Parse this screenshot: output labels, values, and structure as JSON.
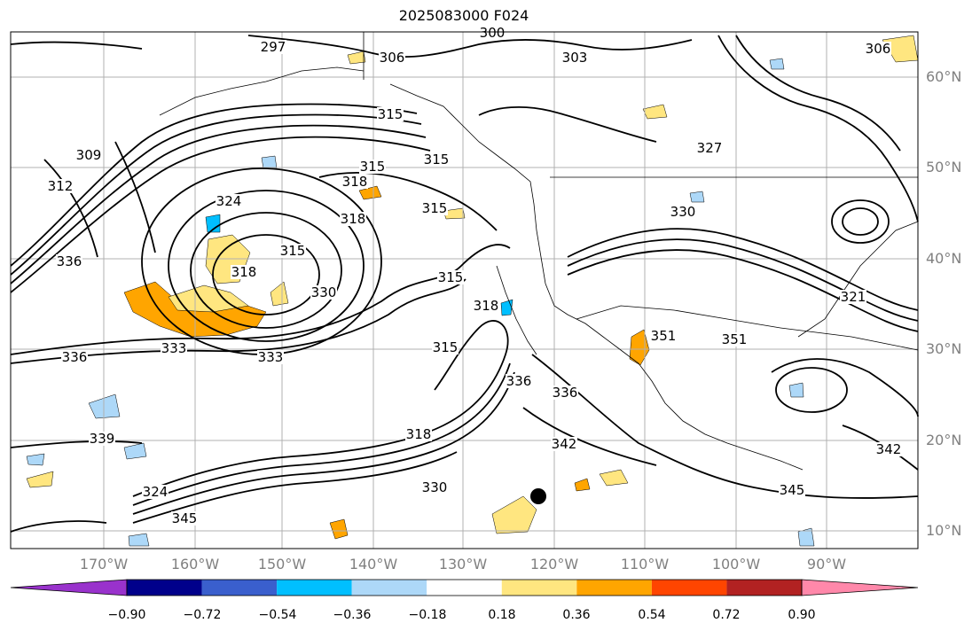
{
  "title": "2025083000 F024",
  "map": {
    "lat_labels": [
      "60°N",
      "50°N",
      "40°N",
      "30°N",
      "20°N",
      "10°N"
    ],
    "lon_labels": [
      "170°W",
      "160°W",
      "150°W",
      "140°W",
      "130°W",
      "120°W",
      "110°W",
      "100°W",
      "90°W"
    ],
    "contour_labels": [
      "297",
      "306",
      "300",
      "303",
      "306",
      "315",
      "315",
      "315",
      "315",
      "309",
      "312",
      "318",
      "318",
      "324",
      "315",
      "318",
      "315",
      "327",
      "330",
      "336",
      "330",
      "333",
      "333",
      "336",
      "315",
      "318",
      "336",
      "336",
      "351",
      "351",
      "339",
      "318",
      "342",
      "324",
      "345",
      "330",
      "345",
      "342",
      "321"
    ],
    "colors": {
      "land_border": "#000000",
      "grid": "#b0b0b0"
    }
  },
  "colorbar": {
    "tick_labels": [
      "−0.90",
      "−0.72",
      "−0.54",
      "−0.36",
      "−0.18",
      "0.18",
      "0.36",
      "0.54",
      "0.72",
      "0.90"
    ],
    "colors": [
      "#9932cc",
      "#00008b",
      "#3a5fcd",
      "#00bfff",
      "#add8f8",
      "#ffffff",
      "#ffe680",
      "#ffa500",
      "#ff4500",
      "#b22222",
      "#ff88aa"
    ]
  }
}
